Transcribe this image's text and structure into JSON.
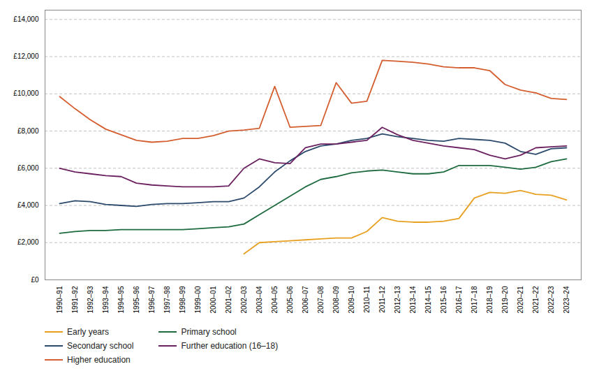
{
  "chart_data": {
    "type": "line",
    "categories": [
      "1990–91",
      "1991–92",
      "1992–93",
      "1993–94",
      "1994–95",
      "1995–96",
      "1996–97",
      "1997–98",
      "1998–99",
      "1999–00",
      "2000–01",
      "2001–02",
      "2002–03",
      "2003–04",
      "2004–05",
      "2005–06",
      "2006–07",
      "2007–08",
      "2008–09",
      "2009–10",
      "2010–11",
      "2011–12",
      "2012–13",
      "2013–14",
      "2014–15",
      "2015–16",
      "2016–17",
      "2017–18",
      "2018–19",
      "2019–20",
      "2020–21",
      "2021–22",
      "2022–23",
      "2023–24"
    ],
    "series": [
      {
        "name": "Early years",
        "color": "#E8A020",
        "values": [
          null,
          null,
          null,
          null,
          null,
          null,
          null,
          null,
          null,
          null,
          null,
          null,
          1400,
          2000,
          2050,
          2100,
          2150,
          2200,
          2250,
          2250,
          2600,
          3350,
          3150,
          3100,
          3100,
          3150,
          3300,
          4400,
          4700,
          4650,
          4800,
          4600,
          4550,
          4300
        ]
      },
      {
        "name": "Primary school",
        "color": "#1D6B3E",
        "values": [
          2500,
          2600,
          2650,
          2650,
          2700,
          2700,
          2700,
          2700,
          2700,
          2750,
          2800,
          2850,
          3000,
          3500,
          4000,
          4500,
          5000,
          5400,
          5550,
          5750,
          5850,
          5900,
          5800,
          5700,
          5700,
          5800,
          6150,
          6150,
          6150,
          6050,
          5950,
          6050,
          6350,
          6500
        ]
      },
      {
        "name": "Secondary school",
        "color": "#2C4A6B",
        "values": [
          4100,
          4250,
          4200,
          4050,
          4000,
          3950,
          4050,
          4100,
          4100,
          4150,
          4200,
          4200,
          4400,
          5000,
          5800,
          6400,
          6900,
          7200,
          7300,
          7500,
          7600,
          7850,
          7700,
          7600,
          7500,
          7450,
          7600,
          7550,
          7500,
          7350,
          6900,
          6750,
          7050,
          7100
        ]
      },
      {
        "name": "Further education (16–18)",
        "color": "#6B2060",
        "values": [
          6000,
          5800,
          5700,
          5600,
          5550,
          5200,
          5100,
          5050,
          5000,
          5000,
          5000,
          5050,
          6000,
          6500,
          6300,
          6250,
          7100,
          7300,
          7300,
          7400,
          7500,
          8200,
          7800,
          7500,
          7350,
          7200,
          7100,
          7000,
          6700,
          6500,
          6700,
          7100,
          7150,
          7200
        ]
      },
      {
        "name": "Higher education",
        "color": "#D45E30",
        "values": [
          9850,
          9200,
          8600,
          8100,
          7800,
          7500,
          7400,
          7450,
          7600,
          7600,
          7750,
          8000,
          8050,
          8150,
          10400,
          8200,
          8250,
          8300,
          10600,
          9500,
          9600,
          11800,
          11750,
          11700,
          11600,
          11450,
          11400,
          11400,
          11250,
          10500,
          10200,
          10050,
          9750,
          9700
        ]
      }
    ],
    "ylim": [
      0,
      14500
    ],
    "yticks": [
      {
        "value": 0,
        "label": "£0"
      },
      {
        "value": 2000,
        "label": "£2,000"
      },
      {
        "value": 4000,
        "label": "£4,000"
      },
      {
        "value": 6000,
        "label": "£6,000"
      },
      {
        "value": 8000,
        "label": "£8,000"
      },
      {
        "value": 10000,
        "label": "£10,000"
      },
      {
        "value": 12000,
        "label": "£12,000"
      },
      {
        "value": 14000,
        "label": "£14,000"
      }
    ],
    "grid": true,
    "legend": "bottom"
  }
}
